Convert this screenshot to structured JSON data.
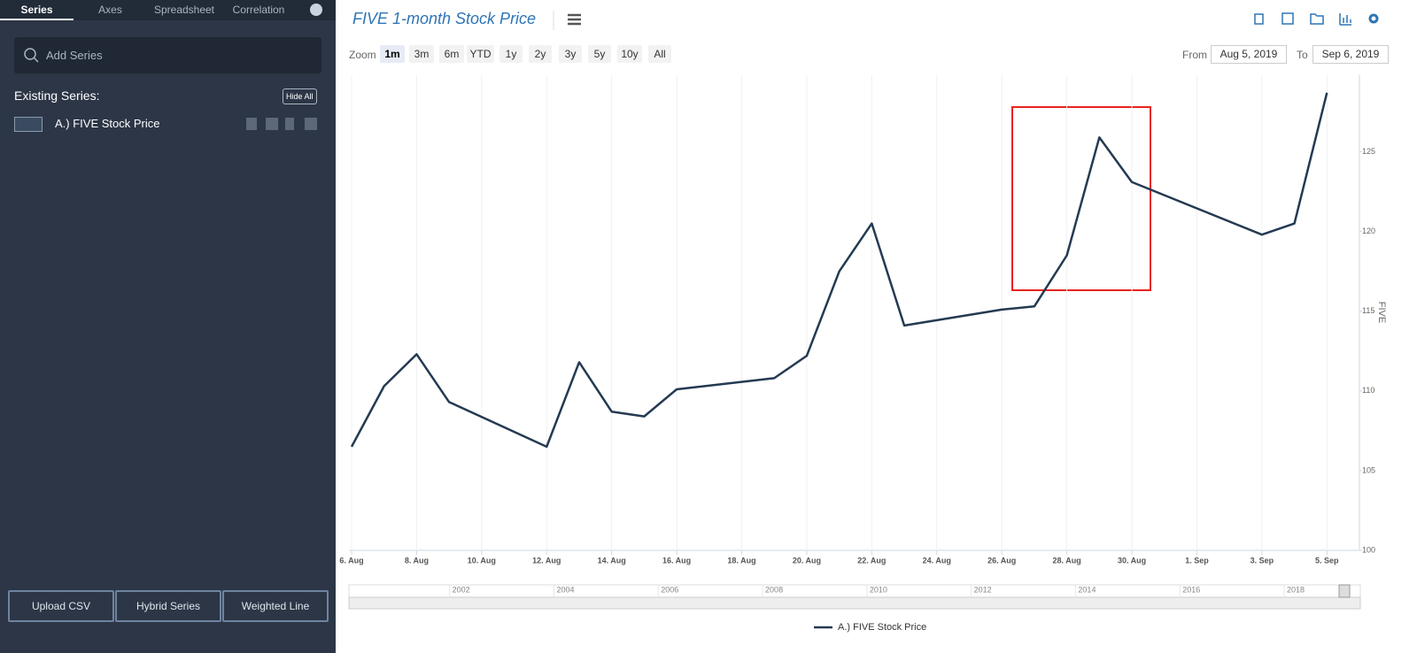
{
  "sidebar": {
    "tabs": [
      "Series",
      "Axes",
      "Spreadsheet",
      "Correlation"
    ],
    "search_placeholder": "Add Series",
    "existing_label": "Existing Series:",
    "hide_all": "Hide All",
    "series_items": [
      "A.) FIVE Stock Price"
    ],
    "footer_buttons": [
      "Upload CSV",
      "Hybrid Series",
      "Weighted Line"
    ]
  },
  "toolbar": {
    "zoom_label": "Zoom",
    "zoom_buttons": [
      "1m",
      "3m",
      "6m",
      "YTD",
      "1y",
      "2y",
      "3y",
      "5y",
      "10y",
      "All"
    ],
    "from_label": "From",
    "from_date": "Aug 5, 2019",
    "to_label": "To",
    "to_date": "Sep 6, 2019"
  },
  "chart_data": {
    "type": "line",
    "title": "FIVE 1-month Stock Price",
    "y_label": "FIVE",
    "x": [
      "2019-08-06",
      "2019-08-07",
      "2019-08-08",
      "2019-08-09",
      "2019-08-12",
      "2019-08-13",
      "2019-08-14",
      "2019-08-15",
      "2019-08-16",
      "2019-08-19",
      "2019-08-20",
      "2019-08-21",
      "2019-08-22",
      "2019-08-23",
      "2019-08-26",
      "2019-08-27",
      "2019-08-28",
      "2019-08-29",
      "2019-08-30",
      "2019-09-03",
      "2019-09-04",
      "2019-09-05"
    ],
    "series": [
      {
        "name": "A.) FIVE Stock Price",
        "color": "#243a52",
        "values": [
          106.5,
          110.3,
          112.3,
          109.3,
          106.5,
          111.8,
          108.7,
          108.4,
          110.1,
          110.8,
          112.2,
          117.5,
          120.5,
          114.1,
          115.1,
          115.3,
          118.5,
          125.9,
          123.1,
          119.8,
          120.5,
          128.7
        ]
      }
    ],
    "xlim": [
      "2019-08-06",
      "2019-09-06"
    ],
    "xticks": [
      {
        "value": "2019-08-06",
        "label": "6. Aug"
      },
      {
        "value": "2019-08-08",
        "label": "8. Aug"
      },
      {
        "value": "2019-08-10",
        "label": "10. Aug"
      },
      {
        "value": "2019-08-12",
        "label": "12. Aug"
      },
      {
        "value": "2019-08-14",
        "label": "14. Aug"
      },
      {
        "value": "2019-08-16",
        "label": "16. Aug"
      },
      {
        "value": "2019-08-18",
        "label": "18. Aug"
      },
      {
        "value": "2019-08-20",
        "label": "20. Aug"
      },
      {
        "value": "2019-08-22",
        "label": "22. Aug"
      },
      {
        "value": "2019-08-24",
        "label": "24. Aug"
      },
      {
        "value": "2019-08-26",
        "label": "26. Aug"
      },
      {
        "value": "2019-08-28",
        "label": "28. Aug"
      },
      {
        "value": "2019-08-30",
        "label": "30. Aug"
      },
      {
        "value": "2019-09-01",
        "label": "1. Sep"
      },
      {
        "value": "2019-09-03",
        "label": "3. Sep"
      },
      {
        "value": "2019-09-05",
        "label": "5. Sep"
      }
    ],
    "ylim": [
      100,
      129.8
    ],
    "yticks": [
      100,
      105,
      110,
      115,
      120,
      125
    ],
    "grid": true,
    "legend": "bottom"
  },
  "navigator": {
    "xlim": [
      2000.07,
      2019.46
    ],
    "xticks": [
      2002,
      2004,
      2006,
      2008,
      2010,
      2012,
      2014,
      2016,
      2018
    ]
  }
}
